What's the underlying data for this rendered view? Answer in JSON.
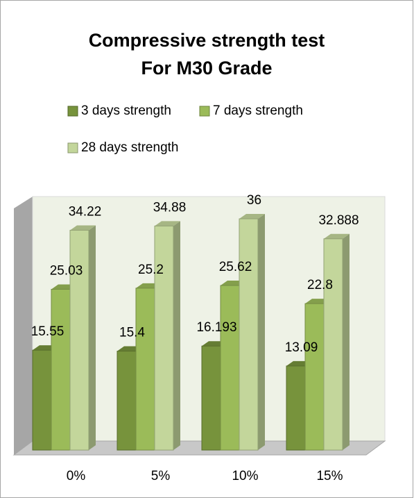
{
  "chart_data": {
    "type": "bar3d",
    "title": [
      "Compressive strength test",
      "For M30 Grade"
    ],
    "categories": [
      "0%",
      "5%",
      "10%",
      "15%"
    ],
    "series": [
      {
        "name": "3 days strength",
        "color": "#77933c",
        "values": [
          15.55,
          15.4,
          16.193,
          13.09
        ]
      },
      {
        "name": "7 days strength",
        "color": "#9bbb59",
        "values": [
          25.03,
          25.2,
          25.62,
          22.8
        ]
      },
      {
        "name": "28 days strength",
        "color": "#c3d69b",
        "values": [
          34.22,
          34.88,
          36,
          32.888
        ]
      }
    ],
    "ylim": [
      0,
      40
    ]
  }
}
